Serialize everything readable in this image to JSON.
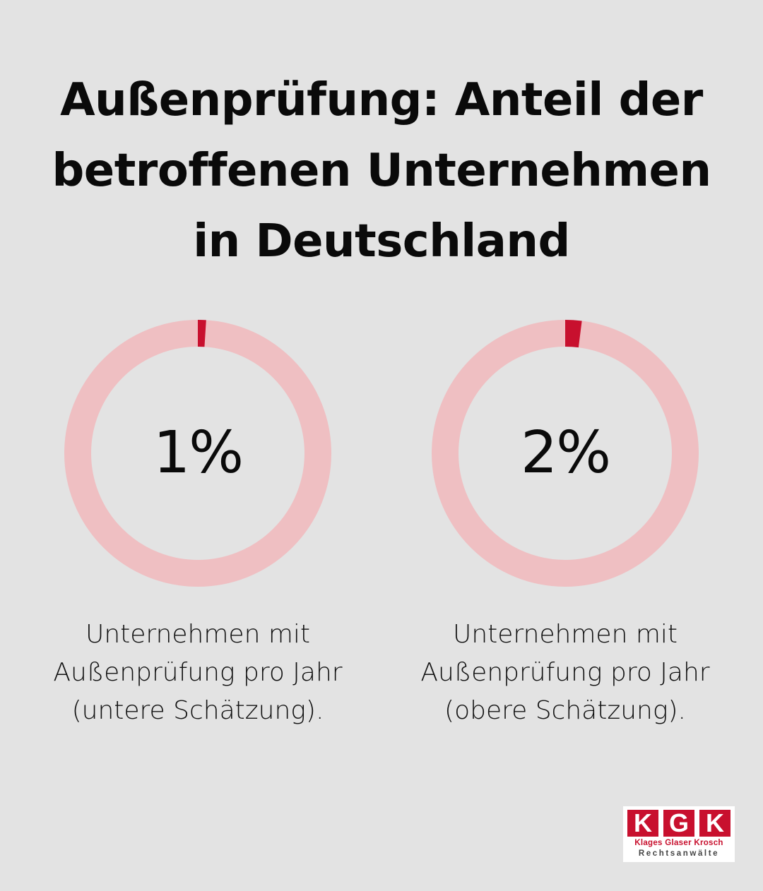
{
  "title_lines": [
    "Außenprüfung: Anteil der",
    "betroffenen Unternehmen",
    "in Deutschland"
  ],
  "colors": {
    "background": "#e3e3e3",
    "ring_track": "#efbfc2",
    "ring_value": "#c8102e",
    "text": "#0a0a0a"
  },
  "chart_data": [
    {
      "type": "pie",
      "subtype": "donut",
      "value": 1,
      "unit": "%",
      "label": "1%",
      "caption_lines": [
        "Unternehmen mit",
        "Außenprüfung pro Jahr",
        "(untere Schätzung)."
      ]
    },
    {
      "type": "pie",
      "subtype": "donut",
      "value": 2,
      "unit": "%",
      "label": "2%",
      "caption_lines": [
        "Unternehmen mit",
        "Außenprüfung pro Jahr",
        "(obere Schätzung)."
      ]
    }
  ],
  "logo": {
    "letters": [
      "K",
      "G",
      "K"
    ],
    "names": "Klages Glaser Krosch",
    "subtitle": "Rechtsanwälte"
  }
}
